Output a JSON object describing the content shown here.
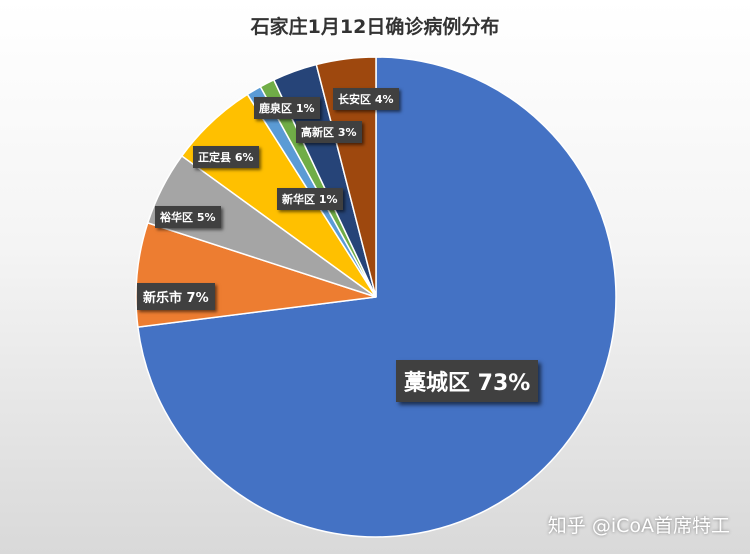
{
  "chart_data": {
    "type": "pie",
    "title": "石家庄1月12日确诊病例分布",
    "slices": [
      {
        "name": "藁城区",
        "value": 73,
        "label": "藁城区 73%",
        "color": "#4472C4"
      },
      {
        "name": "新乐市",
        "value": 7,
        "label": "新乐市 7%",
        "color": "#ED7D31"
      },
      {
        "name": "裕华区",
        "value": 5,
        "label": "裕华区 5%",
        "color": "#A5A5A5"
      },
      {
        "name": "正定县",
        "value": 6,
        "label": "正定县 6%",
        "color": "#FFC000"
      },
      {
        "name": "鹿泉区",
        "value": 1,
        "label": "鹿泉区 1%",
        "color": "#5B9BD5"
      },
      {
        "name": "新华区",
        "value": 1,
        "label": "新华区 1%",
        "color": "#70AD47"
      },
      {
        "name": "高新区",
        "value": 3,
        "label": "高新区 3%",
        "color": "#264478"
      },
      {
        "name": "长安区",
        "value": 4,
        "label": "长安区 4%",
        "color": "#9E480E"
      }
    ]
  },
  "watermark": "知乎 @iCoA首席特工"
}
